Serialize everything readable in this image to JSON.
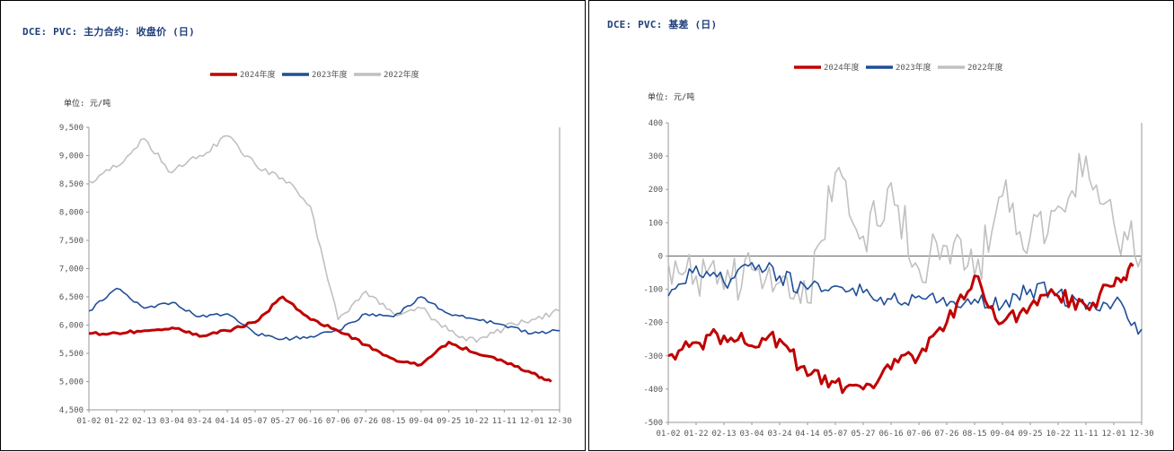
{
  "chart_data": [
    {
      "type": "line",
      "title": "DCE: PVC: 主力合约: 收盘价 (日)",
      "unit_label": "单位: 元/吨",
      "legend_position": "top-center",
      "ylim": [
        4500,
        9500
      ],
      "y_ticks": [
        "4,500",
        "5,000",
        "5,500",
        "6,000",
        "6,500",
        "7,000",
        "7,500",
        "8,000",
        "8,500",
        "9,000",
        "9,500"
      ],
      "y_tick_values": [
        4500,
        5000,
        5500,
        6000,
        6500,
        7000,
        7500,
        8000,
        8500,
        9000,
        9500
      ],
      "x_ticks": [
        "01-02",
        "01-22",
        "02-13",
        "03-04",
        "03-24",
        "04-14",
        "05-07",
        "05-27",
        "06-16",
        "07-06",
        "07-26",
        "08-15",
        "09-04",
        "09-25",
        "10-22",
        "11-11",
        "12-01",
        "12-30"
      ],
      "x": [
        "01-02",
        "01-22",
        "02-13",
        "03-04",
        "03-24",
        "04-14",
        "05-07",
        "05-27",
        "06-16",
        "07-06",
        "07-26",
        "08-15",
        "09-04",
        "09-25",
        "10-22",
        "11-11",
        "12-01",
        "12-30"
      ],
      "series": [
        {
          "name": "2024年度",
          "color": "#c00000",
          "width": 3,
          "values": [
            5850,
            5860,
            5900,
            5950,
            5800,
            5900,
            6050,
            6500,
            6100,
            5900,
            5650,
            5400,
            5300,
            5700,
            5500,
            5350,
            5150,
            null
          ],
          "end_x": 16.7,
          "end_value": 5000
        },
        {
          "name": "2023年度",
          "color": "#1f4e99",
          "width": 1.6,
          "values": [
            6250,
            6650,
            6300,
            6400,
            6150,
            6200,
            5850,
            5750,
            5800,
            5900,
            6200,
            6150,
            6500,
            6200,
            6100,
            6000,
            5850,
            5900
          ]
        },
        {
          "name": "2022年度",
          "color": "#c0c0c0",
          "width": 1.6,
          "values": [
            8550,
            8800,
            9300,
            8700,
            9000,
            9350,
            8850,
            8600,
            8100,
            6100,
            6600,
            6200,
            6300,
            5900,
            5700,
            5950,
            6100,
            6250
          ]
        }
      ]
    },
    {
      "type": "line",
      "title": "DCE: PVC: 基差 (日)",
      "unit_label": "单位: 元/吨",
      "legend_position": "top-center",
      "ylim": [
        -500,
        400
      ],
      "y_ticks": [
        "-500",
        "-400",
        "-300",
        "-200",
        "-100",
        "0",
        "100",
        "200",
        "300",
        "400"
      ],
      "y_tick_values": [
        -500,
        -400,
        -300,
        -200,
        -100,
        0,
        100,
        200,
        300,
        400
      ],
      "x_ticks": [
        "01-02",
        "01-22",
        "02-13",
        "03-04",
        "03-24",
        "04-14",
        "05-07",
        "05-27",
        "06-16",
        "07-06",
        "07-26",
        "08-15",
        "09-04",
        "09-25",
        "10-22",
        "11-11",
        "12-01",
        "12-30"
      ],
      "x": [
        "01-02",
        "01-22",
        "02-13",
        "03-04",
        "03-24",
        "04-14",
        "05-07",
        "05-27",
        "06-16",
        "07-06",
        "07-26",
        "08-15",
        "09-04",
        "09-25",
        "10-22",
        "11-11",
        "12-01",
        "12-30"
      ],
      "series": [
        {
          "name": "2024年度",
          "color": "#c00000",
          "width": 3,
          "values": [
            -300,
            -260,
            -240,
            -270,
            -250,
            -360,
            -380,
            -400,
            -340,
            -300,
            -200,
            -60,
            -200,
            -150,
            -120,
            -150,
            -90,
            null
          ],
          "end_x": 16.7,
          "end_value": -30
        },
        {
          "name": "2023年度",
          "color": "#1f4e99",
          "width": 1.6,
          "values": [
            -120,
            -30,
            -80,
            -20,
            -60,
            -100,
            -90,
            -110,
            -130,
            -120,
            -150,
            -130,
            -150,
            -100,
            -110,
            -160,
            -140,
            -220
          ]
        },
        {
          "name": "2022年度",
          "color": "#c0c0c0",
          "width": 1.6,
          "values": [
            -20,
            -60,
            -100,
            -40,
            -80,
            -140,
            250,
            60,
            220,
            -40,
            30,
            -60,
            180,
            60,
            150,
            300,
            100,
            0
          ]
        }
      ]
    }
  ]
}
